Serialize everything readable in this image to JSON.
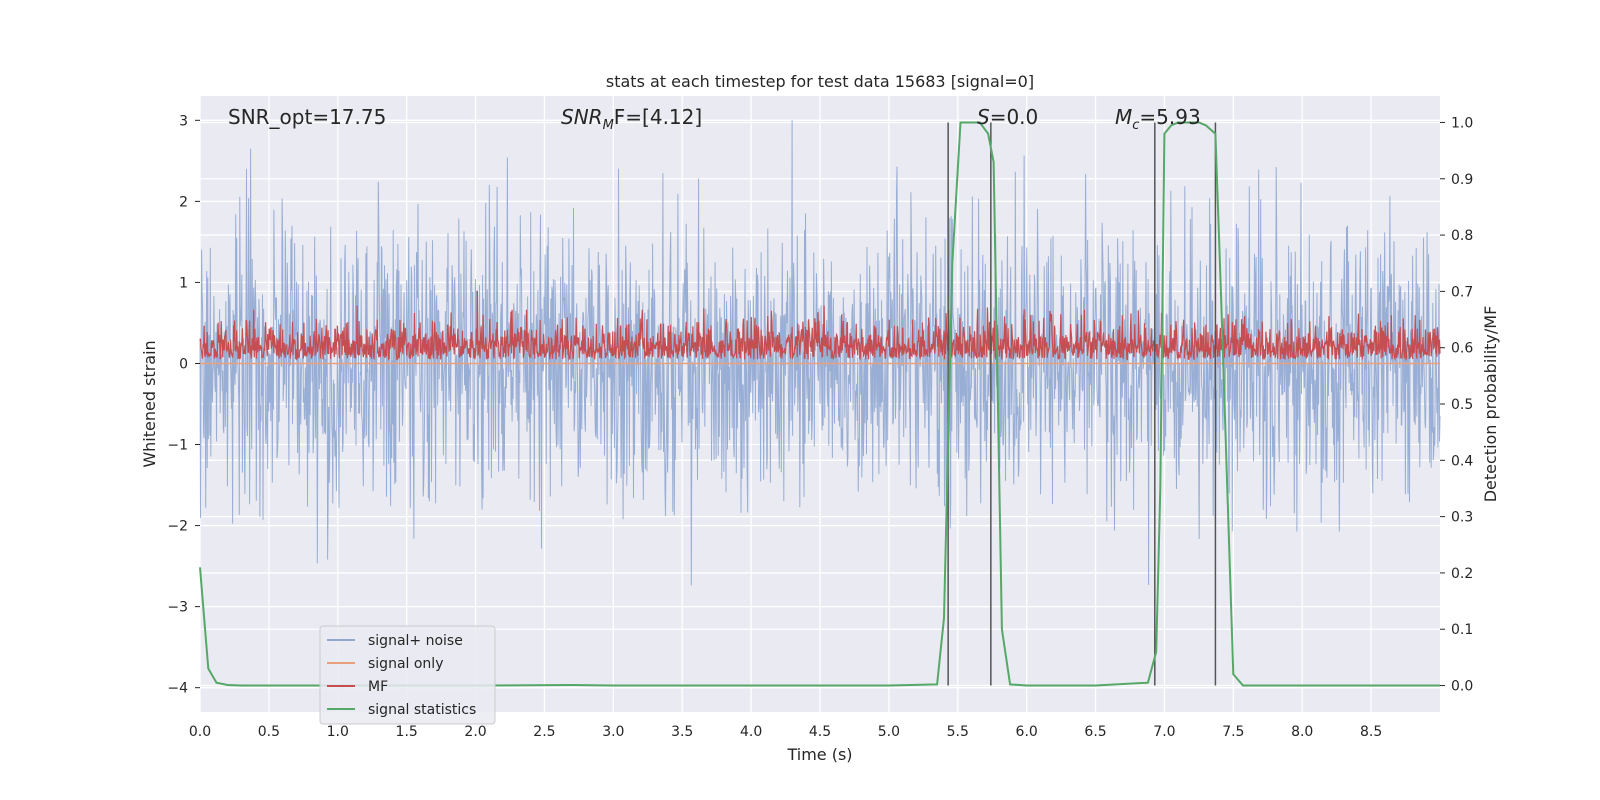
{
  "chart_data": {
    "type": "line",
    "title": "stats at each timestep for test data 15683 [signal=0]",
    "xlabel": "Time (s)",
    "ylabel": "Whitened strain",
    "ylabel_right": "Detection probability/MF",
    "xlim": [
      0.0,
      9.0
    ],
    "ylim": [
      -4.3,
      3.3
    ],
    "ylim_right": [
      -0.047,
      1.047
    ],
    "xticks": [
      "0.0",
      "0.5",
      "1.0",
      "1.5",
      "2.0",
      "2.5",
      "3.0",
      "3.5",
      "4.0",
      "4.5",
      "5.0",
      "5.5",
      "6.0",
      "6.5",
      "7.0",
      "7.5",
      "8.0",
      "8.5"
    ],
    "yticks_left": [
      "3",
      "2",
      "1",
      "0",
      "−1",
      "−2",
      "−3",
      "−4"
    ],
    "yticks_right": [
      "1.0",
      "0.9",
      "0.8",
      "0.7",
      "0.6",
      "0.5",
      "0.4",
      "0.3",
      "0.2",
      "0.1",
      "0.0"
    ],
    "grid": true,
    "legend_position": "lower-left",
    "annotations": {
      "snr_opt": "SNR_opt=17.75",
      "snr_mf_base": "SNR",
      "snr_mf_sub": "M",
      "snr_mf_rest": "F=[4.12]",
      "s_stat_base": "S",
      "s_stat_rest": "=0.0",
      "mc_base": "M",
      "mc_sub": "c",
      "mc_rest": "=5.93"
    },
    "vertical_markers": [
      5.43,
      5.74,
      6.93,
      7.37
    ],
    "series": [
      {
        "name": "signal+ noise",
        "color": "#8fa7d1",
        "axis": "left",
        "style": "noise band",
        "x_range": [
          0.0,
          9.0
        ],
        "typical_range": [
          -1.5,
          1.5
        ],
        "extreme_range": [
          -4.0,
          3.0
        ]
      },
      {
        "name": "signal only",
        "color": "#e8a07d",
        "axis": "left",
        "x": [
          0.0,
          9.0
        ],
        "y": [
          0.0,
          0.0
        ]
      },
      {
        "name": "MF",
        "color": "#c44e52",
        "axis": "left",
        "style": "noise band",
        "x_range": [
          0.0,
          9.0
        ],
        "baseline": 0.05,
        "typical_range": [
          0.05,
          0.6
        ],
        "extreme_range": [
          0.0,
          1.0
        ]
      },
      {
        "name": "signal statistics",
        "color": "#55a868",
        "axis": "right",
        "x": [
          0.0,
          0.06,
          0.12,
          0.2,
          0.3,
          1.0,
          2.0,
          2.7,
          3.0,
          4.0,
          5.0,
          5.35,
          5.4,
          5.46,
          5.52,
          5.58,
          5.66,
          5.72,
          5.76,
          5.82,
          5.88,
          6.0,
          6.5,
          6.88,
          6.94,
          6.97,
          7.0,
          7.05,
          7.1,
          7.25,
          7.3,
          7.37,
          7.41,
          7.5,
          7.57,
          8.0,
          9.0
        ],
        "y": [
          0.21,
          0.03,
          0.005,
          0.001,
          0.0,
          0.0,
          0.0,
          0.001,
          0.0,
          0.0,
          0.0,
          0.002,
          0.12,
          0.75,
          1.0,
          1.0,
          1.0,
          0.98,
          0.93,
          0.1,
          0.002,
          0.0,
          0.0,
          0.005,
          0.06,
          0.35,
          0.98,
          0.995,
          1.0,
          1.0,
          0.995,
          0.98,
          0.7,
          0.02,
          0.0,
          0.0,
          0.0
        ]
      }
    ]
  }
}
